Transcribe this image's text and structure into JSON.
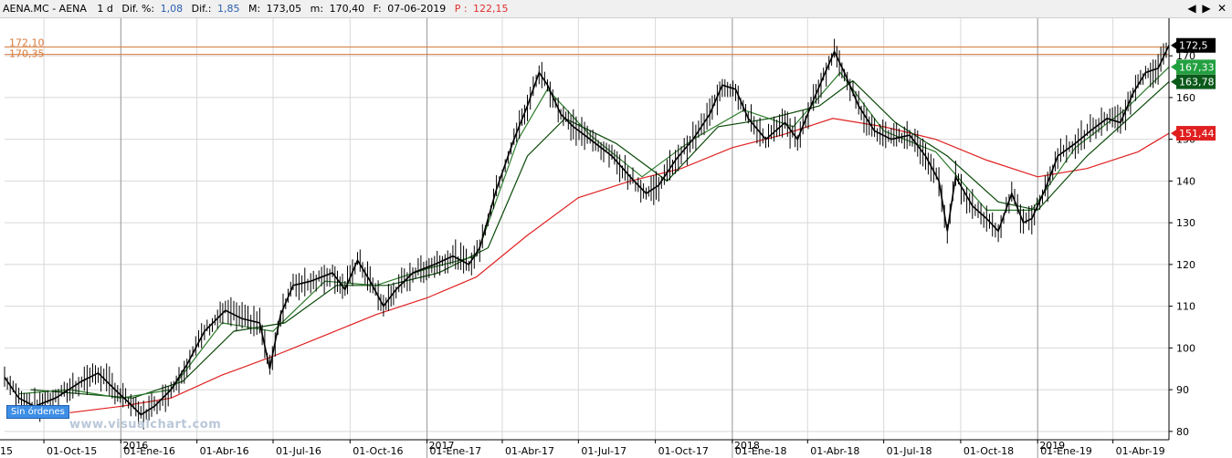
{
  "header": {
    "symbol": "AENA.MC - AENA",
    "timeframe": "1 d",
    "dif_pct_label": "Dif. %:",
    "dif_pct_value": "1,08",
    "dif_label": "Dif.:",
    "dif_value": "1,85",
    "max_label": "M:",
    "max_value": "173,05",
    "min_label": "m:",
    "min_value": "170,40",
    "date_label": "F:",
    "date_value": "07-06-2019",
    "p_label": "P :",
    "p_value": "122,15"
  },
  "window_controls": {
    "left": "◀",
    "right": "▶",
    "close": "✕"
  },
  "badges": {
    "sin_ordenes": "Sin órdenes",
    "watermark": "www.visualchart.com"
  },
  "colors": {
    "candles": "#000000",
    "ma_short": "#2a7a2a",
    "ma_mid": "#0a4a0a",
    "ma_long": "#e02020",
    "hline": "#d87a3a",
    "price_tag": "#000000",
    "tag_green": "#22a040",
    "tag_darkgreen": "#0a5a1a",
    "tag_red": "#e02020"
  },
  "chart_data": {
    "type": "line",
    "title": "",
    "xlabel": "",
    "ylabel": "",
    "ylim": [
      78,
      179
    ],
    "yticks": [
      80,
      90,
      100,
      110,
      120,
      130,
      140,
      150,
      160,
      170
    ],
    "xticks": [
      {
        "label": "01-Oct-15",
        "date": "2015-10-01"
      },
      {
        "label": "01-Ene-16",
        "date": "2016-01-01"
      },
      {
        "label": "01-Abr-16",
        "date": "2016-04-01"
      },
      {
        "label": "01-Jul-16",
        "date": "2016-07-01"
      },
      {
        "label": "01-Oct-16",
        "date": "2016-10-01"
      },
      {
        "label": "01-Ene-17",
        "date": "2017-01-01"
      },
      {
        "label": "01-Abr-17",
        "date": "2017-04-01"
      },
      {
        "label": "01-Jul-17",
        "date": "2017-07-01"
      },
      {
        "label": "01-Oct-17",
        "date": "2017-10-01"
      },
      {
        "label": "01-Ene-18",
        "date": "2018-01-01"
      },
      {
        "label": "01-Abr-18",
        "date": "2018-04-01"
      },
      {
        "label": "01-Jul-18",
        "date": "2018-07-01"
      },
      {
        "label": "01-Oct-18",
        "date": "2018-10-01"
      },
      {
        "label": "01-Ene-19",
        "date": "2019-01-01"
      },
      {
        "label": "01-Abr-19",
        "date": "2019-04-01"
      }
    ],
    "left_edge_label": "15",
    "year_labels": [
      {
        "label": "2016",
        "date": "2016-01-01"
      },
      {
        "label": "2017",
        "date": "2017-01-01"
      },
      {
        "label": "2018",
        "date": "2018-01-01"
      },
      {
        "label": "2019",
        "date": "2019-01-01"
      }
    ],
    "x_range": [
      "2015-08-15",
      "2019-06-07"
    ],
    "hlines": [
      {
        "label": "172,10",
        "value": 172.1
      },
      {
        "label": "170,35",
        "value": 170.35
      }
    ],
    "price_tags": [
      {
        "label": "172,5",
        "value": 172.5,
        "color": "#000000"
      },
      {
        "label": "167,33",
        "value": 167.33,
        "color": "#22a040"
      },
      {
        "label": "163,78",
        "value": 163.78,
        "color": "#0a5a1a"
      },
      {
        "label": "151,44",
        "value": 151.44,
        "color": "#e02020"
      }
    ],
    "price_path": [
      {
        "date": "2015-08-15",
        "value": 93
      },
      {
        "date": "2015-09-01",
        "value": 88
      },
      {
        "date": "2015-09-20",
        "value": 86
      },
      {
        "date": "2015-10-15",
        "value": 88
      },
      {
        "date": "2015-11-15",
        "value": 92
      },
      {
        "date": "2015-12-05",
        "value": 94
      },
      {
        "date": "2015-12-25",
        "value": 90
      },
      {
        "date": "2016-01-10",
        "value": 87
      },
      {
        "date": "2016-01-25",
        "value": 84
      },
      {
        "date": "2016-02-10",
        "value": 86
      },
      {
        "date": "2016-03-01",
        "value": 90
      },
      {
        "date": "2016-03-20",
        "value": 96
      },
      {
        "date": "2016-04-10",
        "value": 104
      },
      {
        "date": "2016-05-05",
        "value": 109
      },
      {
        "date": "2016-05-25",
        "value": 107
      },
      {
        "date": "2016-06-15",
        "value": 106
      },
      {
        "date": "2016-06-27",
        "value": 95
      },
      {
        "date": "2016-07-10",
        "value": 108
      },
      {
        "date": "2016-07-25",
        "value": 115
      },
      {
        "date": "2016-08-15",
        "value": 116
      },
      {
        "date": "2016-09-10",
        "value": 118
      },
      {
        "date": "2016-09-25",
        "value": 114
      },
      {
        "date": "2016-10-10",
        "value": 121
      },
      {
        "date": "2016-10-25",
        "value": 116
      },
      {
        "date": "2016-11-10",
        "value": 110
      },
      {
        "date": "2016-11-25",
        "value": 114
      },
      {
        "date": "2016-12-15",
        "value": 118
      },
      {
        "date": "2017-01-10",
        "value": 120
      },
      {
        "date": "2017-02-01",
        "value": 122
      },
      {
        "date": "2017-02-20",
        "value": 120
      },
      {
        "date": "2017-03-05",
        "value": 124
      },
      {
        "date": "2017-03-25",
        "value": 138
      },
      {
        "date": "2017-04-15",
        "value": 150
      },
      {
        "date": "2017-05-01",
        "value": 158
      },
      {
        "date": "2017-05-15",
        "value": 166
      },
      {
        "date": "2017-05-25",
        "value": 163
      },
      {
        "date": "2017-06-10",
        "value": 156
      },
      {
        "date": "2017-06-25",
        "value": 153
      },
      {
        "date": "2017-07-15",
        "value": 150
      },
      {
        "date": "2017-08-10",
        "value": 146
      },
      {
        "date": "2017-09-01",
        "value": 141
      },
      {
        "date": "2017-09-20",
        "value": 137
      },
      {
        "date": "2017-10-05",
        "value": 139
      },
      {
        "date": "2017-10-25",
        "value": 145
      },
      {
        "date": "2017-11-15",
        "value": 150
      },
      {
        "date": "2017-12-05",
        "value": 156
      },
      {
        "date": "2017-12-20",
        "value": 163
      },
      {
        "date": "2018-01-05",
        "value": 162
      },
      {
        "date": "2018-01-20",
        "value": 155
      },
      {
        "date": "2018-02-10",
        "value": 150
      },
      {
        "date": "2018-03-05",
        "value": 154
      },
      {
        "date": "2018-03-20",
        "value": 150
      },
      {
        "date": "2018-04-05",
        "value": 158
      },
      {
        "date": "2018-04-20",
        "value": 165
      },
      {
        "date": "2018-05-03",
        "value": 171
      },
      {
        "date": "2018-05-15",
        "value": 166
      },
      {
        "date": "2018-06-01",
        "value": 158
      },
      {
        "date": "2018-06-20",
        "value": 152
      },
      {
        "date": "2018-07-10",
        "value": 150
      },
      {
        "date": "2018-08-01",
        "value": 151
      },
      {
        "date": "2018-08-20",
        "value": 146
      },
      {
        "date": "2018-09-05",
        "value": 140
      },
      {
        "date": "2018-09-15",
        "value": 128
      },
      {
        "date": "2018-09-25",
        "value": 141
      },
      {
        "date": "2018-10-15",
        "value": 134
      },
      {
        "date": "2018-11-01",
        "value": 131
      },
      {
        "date": "2018-11-15",
        "value": 128
      },
      {
        "date": "2018-12-01",
        "value": 137
      },
      {
        "date": "2018-12-15",
        "value": 130
      },
      {
        "date": "2018-12-25",
        "value": 131
      },
      {
        "date": "2019-01-10",
        "value": 138
      },
      {
        "date": "2019-01-25",
        "value": 146
      },
      {
        "date": "2019-02-15",
        "value": 149
      },
      {
        "date": "2019-03-05",
        "value": 152
      },
      {
        "date": "2019-03-25",
        "value": 155
      },
      {
        "date": "2019-04-10",
        "value": 154
      },
      {
        "date": "2019-04-25",
        "value": 161
      },
      {
        "date": "2019-05-10",
        "value": 166
      },
      {
        "date": "2019-05-25",
        "value": 167
      },
      {
        "date": "2019-06-07",
        "value": 172.5
      }
    ],
    "series": [
      {
        "color": "#e02020",
        "values": [
          {
            "date": "2015-11-01",
            "value": 84.5
          },
          {
            "date": "2016-01-01",
            "value": 86
          },
          {
            "date": "2016-03-01",
            "value": 88
          },
          {
            "date": "2016-05-01",
            "value": 93.5
          },
          {
            "date": "2016-07-01",
            "value": 98
          },
          {
            "date": "2016-09-01",
            "value": 103
          },
          {
            "date": "2016-11-01",
            "value": 108
          },
          {
            "date": "2017-01-01",
            "value": 112
          },
          {
            "date": "2017-03-01",
            "value": 117
          },
          {
            "date": "2017-05-01",
            "value": 127
          },
          {
            "date": "2017-07-01",
            "value": 136
          },
          {
            "date": "2017-09-01",
            "value": 140
          },
          {
            "date": "2017-11-01",
            "value": 143
          },
          {
            "date": "2018-01-01",
            "value": 148
          },
          {
            "date": "2018-03-01",
            "value": 151
          },
          {
            "date": "2018-05-01",
            "value": 155
          },
          {
            "date": "2018-07-01",
            "value": 153
          },
          {
            "date": "2018-09-01",
            "value": 150
          },
          {
            "date": "2018-11-01",
            "value": 145
          },
          {
            "date": "2019-01-01",
            "value": 141
          },
          {
            "date": "2019-03-01",
            "value": 143
          },
          {
            "date": "2019-05-01",
            "value": 147
          },
          {
            "date": "2019-06-07",
            "value": 151.44
          }
        ]
      },
      {
        "color": "#0a4a0a",
        "values": [
          {
            "date": "2015-09-15",
            "value": 90
          },
          {
            "date": "2015-11-15",
            "value": 89
          },
          {
            "date": "2016-01-15",
            "value": 88
          },
          {
            "date": "2016-03-15",
            "value": 92
          },
          {
            "date": "2016-05-15",
            "value": 104
          },
          {
            "date": "2016-07-15",
            "value": 106
          },
          {
            "date": "2016-09-15",
            "value": 115
          },
          {
            "date": "2016-11-15",
            "value": 115
          },
          {
            "date": "2017-01-15",
            "value": 118
          },
          {
            "date": "2017-03-15",
            "value": 124
          },
          {
            "date": "2017-05-01",
            "value": 146
          },
          {
            "date": "2017-06-15",
            "value": 155
          },
          {
            "date": "2017-08-15",
            "value": 149
          },
          {
            "date": "2017-10-15",
            "value": 140
          },
          {
            "date": "2017-12-15",
            "value": 153
          },
          {
            "date": "2018-02-15",
            "value": 155
          },
          {
            "date": "2018-04-15",
            "value": 158
          },
          {
            "date": "2018-05-25",
            "value": 164
          },
          {
            "date": "2018-07-15",
            "value": 154
          },
          {
            "date": "2018-09-15",
            "value": 146
          },
          {
            "date": "2018-11-15",
            "value": 135
          },
          {
            "date": "2019-01-01",
            "value": 133
          },
          {
            "date": "2019-03-01",
            "value": 146
          },
          {
            "date": "2019-05-01",
            "value": 157
          },
          {
            "date": "2019-06-07",
            "value": 163.78
          }
        ]
      },
      {
        "color": "#2a7a2a",
        "values": [
          {
            "date": "2015-09-01",
            "value": 89
          },
          {
            "date": "2015-11-01",
            "value": 90
          },
          {
            "date": "2016-01-01",
            "value": 88
          },
          {
            "date": "2016-03-01",
            "value": 90
          },
          {
            "date": "2016-05-01",
            "value": 106
          },
          {
            "date": "2016-07-01",
            "value": 104
          },
          {
            "date": "2016-09-01",
            "value": 116
          },
          {
            "date": "2016-11-01",
            "value": 115
          },
          {
            "date": "2017-01-01",
            "value": 119
          },
          {
            "date": "2017-03-01",
            "value": 122
          },
          {
            "date": "2017-04-20",
            "value": 150
          },
          {
            "date": "2017-05-25",
            "value": 162
          },
          {
            "date": "2017-07-15",
            "value": 151
          },
          {
            "date": "2017-09-15",
            "value": 141
          },
          {
            "date": "2017-11-15",
            "value": 150
          },
          {
            "date": "2018-01-15",
            "value": 157
          },
          {
            "date": "2018-03-15",
            "value": 153
          },
          {
            "date": "2018-05-10",
            "value": 166
          },
          {
            "date": "2018-07-01",
            "value": 152
          },
          {
            "date": "2018-09-01",
            "value": 147
          },
          {
            "date": "2018-11-01",
            "value": 133
          },
          {
            "date": "2018-12-25",
            "value": 133
          },
          {
            "date": "2019-02-15",
            "value": 148
          },
          {
            "date": "2019-04-15",
            "value": 157
          },
          {
            "date": "2019-06-07",
            "value": 167.33
          }
        ]
      }
    ]
  }
}
